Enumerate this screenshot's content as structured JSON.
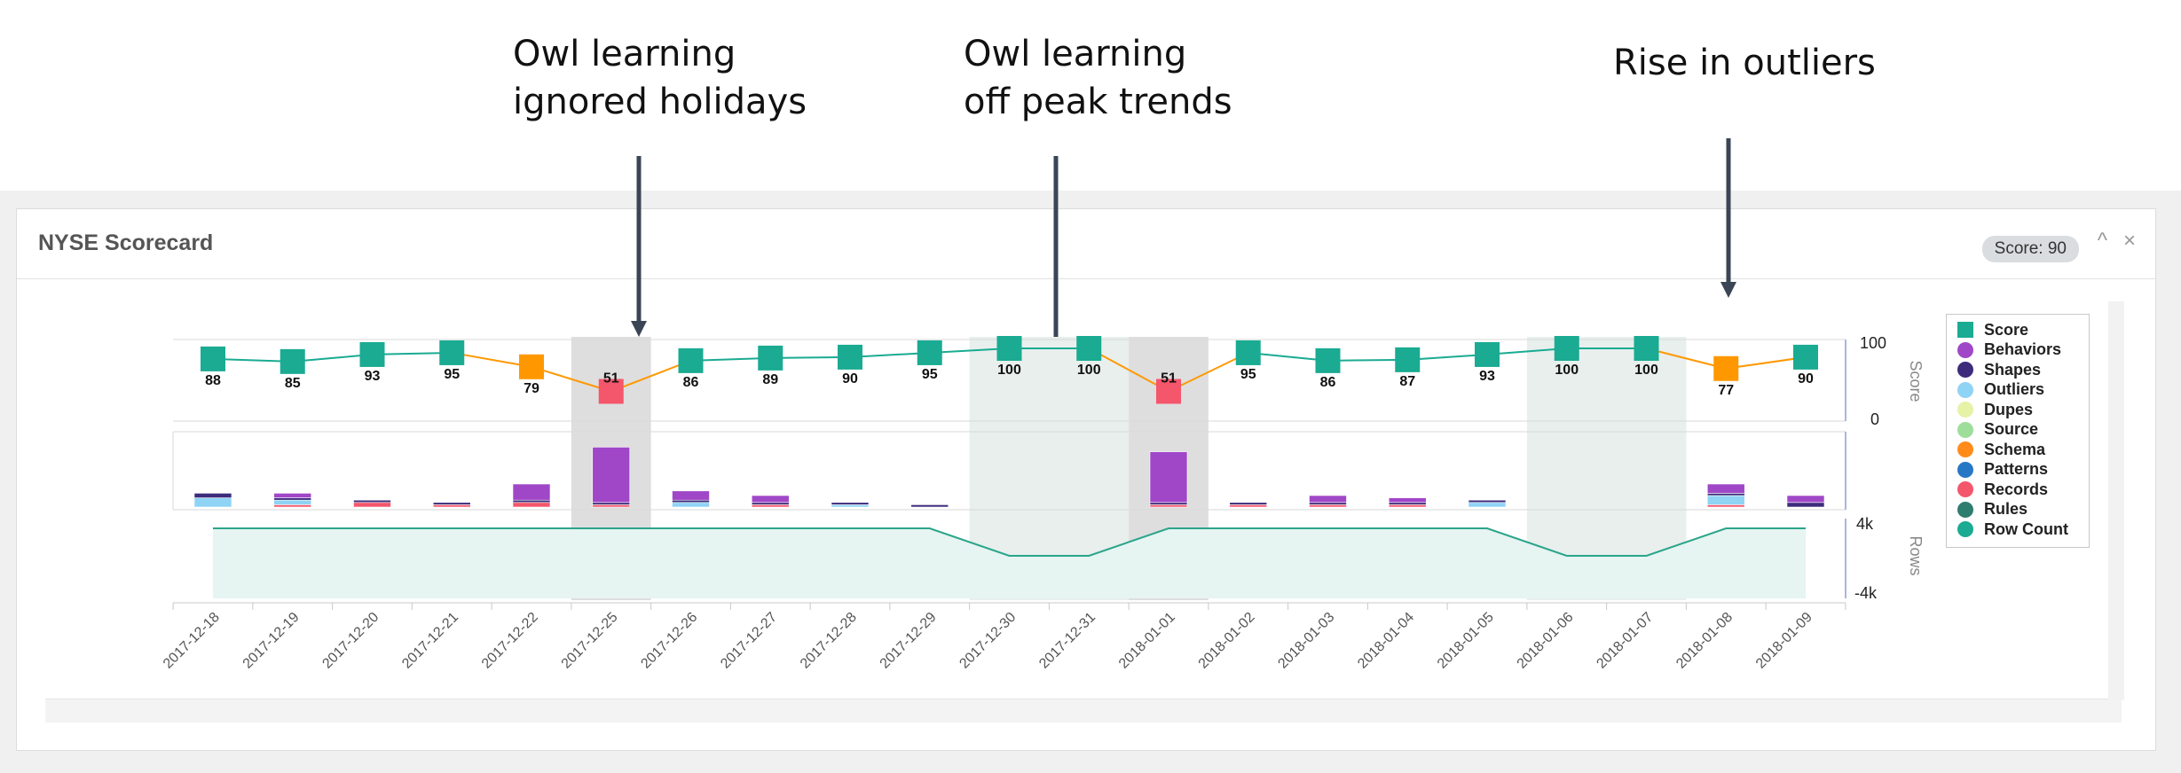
{
  "annotations": [
    {
      "line1": "Owl learning",
      "line2": "ignored holidays"
    },
    {
      "line1": "Owl learning",
      "line2": "off peak trends"
    },
    {
      "line1": "Rise in outliers",
      "line2": ""
    }
  ],
  "panel": {
    "title": "NYSE Scorecard",
    "score_badge": "Score: 90",
    "collapse_icon": "^",
    "close_icon": "×"
  },
  "colors": {
    "score_ok": "#1aab92",
    "score_warn": "#ff9800",
    "score_bad": "#f4566b",
    "rows_fill": "#e6f4f2",
    "rows_line": "#2aa58a",
    "highlight_dark": "#dedede",
    "highlight_light": "#e8efed"
  },
  "chart_data": {
    "type": "line",
    "categories": [
      "2017-12-18",
      "2017-12-19",
      "2017-12-20",
      "2017-12-21",
      "2017-12-22",
      "2017-12-25",
      "2017-12-26",
      "2017-12-27",
      "2017-12-28",
      "2017-12-29",
      "2017-12-30",
      "2017-12-31",
      "2018-01-01",
      "2018-01-02",
      "2018-01-03",
      "2018-01-04",
      "2018-01-05",
      "2018-01-06",
      "2018-01-07",
      "2018-01-08",
      "2018-01-09"
    ],
    "score": {
      "axis_label": "Score",
      "ylim": [
        0,
        100
      ],
      "ticks": [
        "100",
        "0"
      ],
      "values": [
        88,
        85,
        93,
        95,
        79,
        51,
        86,
        89,
        90,
        95,
        100,
        100,
        51,
        95,
        86,
        87,
        93,
        100,
        100,
        77,
        90
      ],
      "status": [
        "ok",
        "ok",
        "ok",
        "ok",
        "warn",
        "bad",
        "ok",
        "ok",
        "ok",
        "ok",
        "ok",
        "ok",
        "bad",
        "ok",
        "ok",
        "ok",
        "ok",
        "ok",
        "ok",
        "warn",
        "ok"
      ]
    },
    "rows": {
      "axis_label": "Rows",
      "ticks": [
        "4k",
        "-4k"
      ],
      "values": [
        1,
        1,
        1,
        1,
        1,
        1,
        1,
        1,
        1,
        1,
        0.45,
        0.45,
        1,
        1,
        1,
        1,
        1,
        0.45,
        0.45,
        1,
        1
      ]
    },
    "breakdown_series": [
      {
        "name": "Behaviors",
        "color": "#a047c8",
        "values": [
          0,
          2,
          0,
          0,
          7,
          24,
          4,
          3,
          0,
          0,
          0,
          0,
          22,
          0,
          3,
          2,
          0,
          0,
          0,
          4,
          3
        ]
      },
      {
        "name": "Shapes",
        "color": "#3d2c7c",
        "values": [
          2,
          1,
          1,
          1,
          1,
          1,
          1,
          1,
          1,
          1,
          0,
          0,
          1,
          1,
          1,
          1,
          1,
          0,
          0,
          1,
          2
        ]
      },
      {
        "name": "Outliers",
        "color": "#8fd3f5",
        "values": [
          4,
          2,
          0,
          0,
          0,
          0,
          2,
          0,
          1,
          0,
          0,
          0,
          0,
          0,
          0,
          0,
          2,
          0,
          0,
          4,
          0
        ]
      },
      {
        "name": "Records",
        "color": "#f4566b",
        "values": [
          0,
          1,
          2,
          1,
          2,
          1,
          0,
          1,
          0,
          0,
          0,
          0,
          1,
          1,
          1,
          1,
          0,
          0,
          0,
          1,
          0
        ]
      }
    ],
    "highlights": [
      {
        "from": 5,
        "to": 5,
        "tone": "dark"
      },
      {
        "from": 10,
        "to": 11,
        "tone": "light"
      },
      {
        "from": 12,
        "to": 12,
        "tone": "dark"
      },
      {
        "from": 17,
        "to": 18,
        "tone": "light"
      }
    ],
    "legend": [
      {
        "label": "Score",
        "color": "#1aab92",
        "shape": "square"
      },
      {
        "label": "Behaviors",
        "color": "#a047c8",
        "shape": "circle"
      },
      {
        "label": "Shapes",
        "color": "#3d2c7c",
        "shape": "circle"
      },
      {
        "label": "Outliers",
        "color": "#8fd3f5",
        "shape": "circle"
      },
      {
        "label": "Dupes",
        "color": "#e6f2a6",
        "shape": "circle"
      },
      {
        "label": "Source",
        "color": "#9fde9a",
        "shape": "circle"
      },
      {
        "label": "Schema",
        "color": "#ff8c1a",
        "shape": "circle"
      },
      {
        "label": "Patterns",
        "color": "#2778c4",
        "shape": "circle"
      },
      {
        "label": "Records",
        "color": "#f4566b",
        "shape": "circle"
      },
      {
        "label": "Rules",
        "color": "#2e7d6e",
        "shape": "circle"
      },
      {
        "label": "Row Count",
        "color": "#1aab92",
        "shape": "circle"
      }
    ],
    "legend_position": "right"
  }
}
